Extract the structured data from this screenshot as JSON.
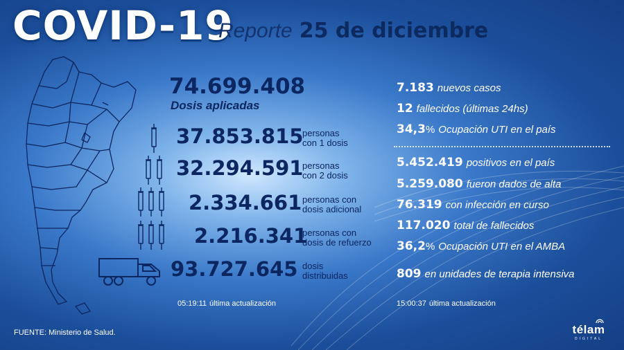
{
  "header": {
    "title": "COVID-19",
    "report_word": "Reporte",
    "date": "25 de diciembre"
  },
  "vaccination": {
    "total": {
      "value": "74.699.408",
      "label": "Dosis aplicadas"
    },
    "rows": [
      {
        "value": "37.853.815",
        "line1": "personas",
        "line2": "con 1 dosis",
        "icon": "one-syringe-icon"
      },
      {
        "value": "32.294.591",
        "line1": "personas",
        "line2": "con 2 dosis",
        "icon": "two-syringes-icon"
      },
      {
        "value": "2.334.661",
        "line1": "personas con",
        "line2": "dosis adicional",
        "icon": "three-syringes-icon"
      },
      {
        "value": "2.216.341",
        "line1": "personas con",
        "line2": "dosis de refuerzo",
        "icon": "three-syringes-icon"
      },
      {
        "value": "93.727.645",
        "line1": "dosis",
        "line2": "distribuidas",
        "icon": "truck-icon"
      }
    ],
    "update": {
      "time": "05:19:11",
      "label": "última actualización"
    }
  },
  "cases": {
    "daily": [
      {
        "value": "7.183",
        "text": "nuevos casos"
      },
      {
        "value": "12",
        "text": "fallecidos (últimas 24hs)"
      },
      {
        "value": "34,3",
        "unit": "%",
        "text": "Ocupación UTI en el país"
      }
    ],
    "totals": [
      {
        "value": "5.452.419",
        "text": "positivos en el país"
      },
      {
        "value": "5.259.080",
        "text": "fueron dados de alta"
      },
      {
        "value": "76.319",
        "text": "con infección en curso"
      },
      {
        "value": "117.020",
        "text": "total de fallecidos"
      },
      {
        "value": "36,2",
        "unit": "%",
        "text": "Ocupación UTI en el AMBA"
      },
      {
        "value": "809",
        "text": "en unidades de terapia intensiva"
      }
    ],
    "update": {
      "time": "15:00:37",
      "label": "última actualización"
    }
  },
  "footer": {
    "source": "FUENTE: Ministerio de Salud.",
    "logo_word": "télam",
    "logo_sub": "DIGITAL"
  },
  "colors": {
    "dark_blue": "#0b2660",
    "white": "#ffffff"
  }
}
